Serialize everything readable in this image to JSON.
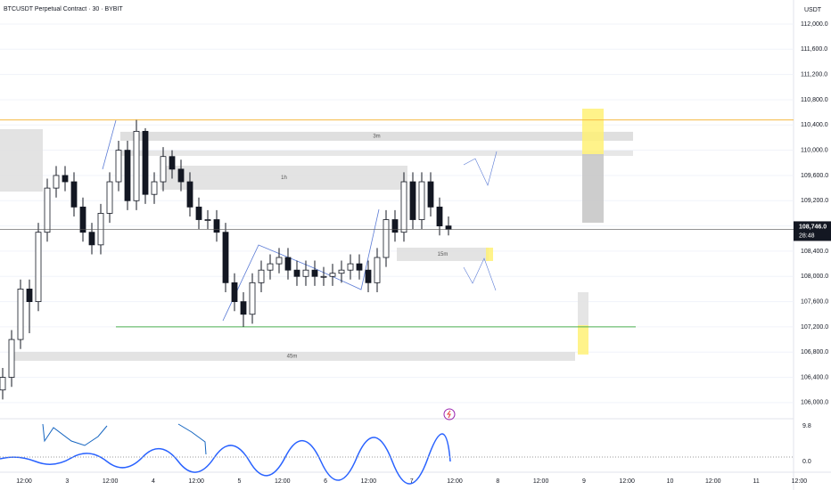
{
  "chart_data": {
    "type": "candlestick",
    "title": "BTCUSDT Perpetual Contract · 30 · BYBIT",
    "currency": "USDT",
    "ylim": [
      105815,
      112381
    ],
    "yticks": [
      {
        "value": 106000,
        "label": "106,000.0"
      },
      {
        "value": 106400,
        "label": "106,400.0"
      },
      {
        "value": 106800,
        "label": "106,800.0"
      },
      {
        "value": 107200,
        "label": "107,200.0"
      },
      {
        "value": 107600,
        "label": "107,600.0"
      },
      {
        "value": 108000,
        "label": "108,000.0"
      },
      {
        "value": 108400,
        "label": "108,400.0"
      },
      {
        "value": 108800,
        "label": "108,800.0"
      },
      {
        "value": 109200,
        "label": "109,200.0"
      },
      {
        "value": 109600,
        "label": "109,600.0"
      },
      {
        "value": 110000,
        "label": "110,000.0"
      },
      {
        "value": 110400,
        "label": "110,400.0"
      },
      {
        "value": 110800,
        "label": "110,800.0"
      },
      {
        "value": 111200,
        "label": "111,200.0"
      },
      {
        "value": 111600,
        "label": "111,600.0"
      },
      {
        "value": 112000,
        "label": "112,000.0"
      }
    ],
    "x_labels": [
      "12:00",
      "3",
      "12:00",
      "4",
      "12:00",
      "5",
      "12:00",
      "6",
      "12:00",
      "7",
      "12:00",
      "8",
      "12:00",
      "9",
      "12:00",
      "10",
      "12:00",
      "11",
      "12:00"
    ],
    "open": [
      106200,
      106400,
      107000,
      107800,
      107600,
      108700,
      109400,
      109600,
      109500,
      109100,
      108700,
      108500,
      109000,
      109500,
      110000,
      109200,
      110300,
      109300,
      109500,
      109900,
      109700,
      109500,
      109100,
      108900,
      108900,
      108700,
      107900,
      107600,
      107400,
      107900,
      108100,
      108200,
      108300,
      108100,
      108000,
      108100,
      108000,
      108000,
      108050,
      108100,
      108200,
      108100,
      107900,
      108300,
      108900,
      108700,
      109500,
      108900,
      109500,
      109100,
      108800
    ],
    "high": [
      106550,
      107150,
      107950,
      107950,
      108850,
      109550,
      109750,
      109750,
      109650,
      109250,
      108850,
      109150,
      109650,
      110150,
      110150,
      110480,
      110350,
      109650,
      110050,
      110000,
      109850,
      109650,
      109250,
      109050,
      109050,
      108850,
      108050,
      107750,
      108050,
      108250,
      108350,
      108450,
      108450,
      108250,
      108250,
      108250,
      108150,
      108200,
      108250,
      108350,
      108350,
      108250,
      108450,
      109050,
      109050,
      109650,
      109650,
      109650,
      109650,
      109250,
      108950
    ],
    "low": [
      106050,
      106250,
      106850,
      107100,
      107450,
      108550,
      109250,
      109350,
      108950,
      108550,
      108350,
      108350,
      108850,
      109350,
      109050,
      109050,
      109150,
      109150,
      109350,
      109550,
      109350,
      108950,
      108750,
      108750,
      108550,
      107750,
      107450,
      107200,
      107250,
      107750,
      107950,
      108050,
      107950,
      107850,
      107850,
      107850,
      107850,
      107850,
      107900,
      107950,
      107950,
      107750,
      107750,
      108150,
      108550,
      108550,
      108750,
      108750,
      108950,
      108650,
      108650
    ],
    "close": [
      106400,
      107000,
      107800,
      107600,
      108700,
      109400,
      109600,
      109500,
      109100,
      108700,
      108500,
      109000,
      109500,
      110000,
      109200,
      110300,
      109300,
      109500,
      109900,
      109700,
      109500,
      109100,
      108900,
      108900,
      108700,
      107900,
      107600,
      107400,
      107900,
      108100,
      108200,
      108300,
      108100,
      108000,
      108100,
      108000,
      108000,
      108050,
      108100,
      108200,
      108100,
      107900,
      108300,
      108900,
      108700,
      109500,
      108900,
      109500,
      109100,
      108800,
      108746
    ],
    "last_price": {
      "value": 108746,
      "label": "108,746.0"
    },
    "countdown": "28:48",
    "levels": [
      {
        "value": 110480,
        "color": "#f5b942"
      },
      {
        "value": 107200,
        "color": "#4caf50"
      }
    ],
    "zones": [
      {
        "label": "3m",
        "top": 110292,
        "bottom": 110150,
        "color": "#d9d9d9"
      },
      {
        "label": null,
        "top": 109995,
        "bottom": 109910,
        "color": "#e3e3e3"
      },
      {
        "label": "1h",
        "top": 109755,
        "bottom": 109374,
        "color": "#dedede"
      },
      {
        "label": null,
        "top": 110334,
        "bottom": 109345,
        "color": "#dedede"
      },
      {
        "label": "15m",
        "top": 108456,
        "bottom": 108244,
        "color": "#dedede"
      },
      {
        "label": "45m",
        "top": 106804,
        "bottom": 106663,
        "color": "#dedede"
      },
      {
        "label": null,
        "top": 110659,
        "bottom": 109938,
        "color": "#fff176"
      },
      {
        "label": null,
        "top": 109938,
        "bottom": 108851,
        "color": "#c4c4c4"
      },
      {
        "label": null,
        "top": 108456,
        "bottom": 108244,
        "color": "#fff176"
      },
      {
        "label": null,
        "top": 107228,
        "bottom": 106762,
        "color": "#fff176"
      },
      {
        "label": null,
        "top": 107750,
        "bottom": 107228,
        "color": "#e0e0e0"
      }
    ],
    "indicator_labels": [
      "9.8",
      "0.0"
    ]
  }
}
